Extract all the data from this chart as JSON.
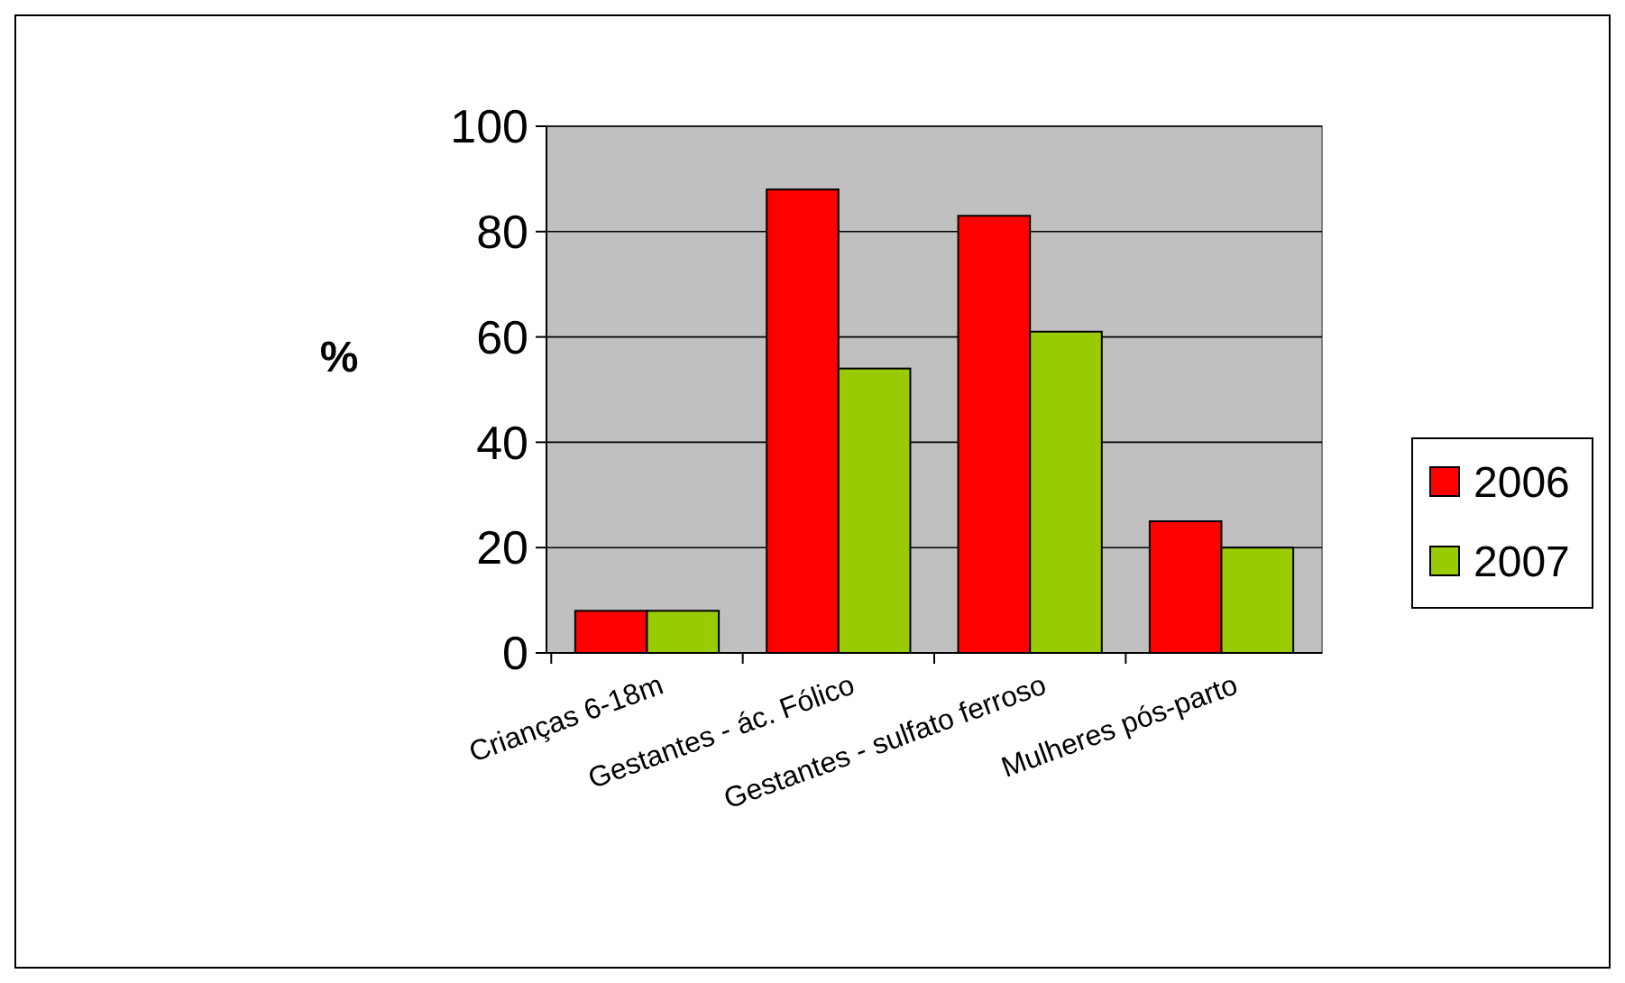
{
  "chart_data": {
    "type": "bar",
    "ylabel": "%",
    "categories": [
      "Crianças 6-18m",
      "Gestantes - ác. Fólico",
      "Gestantes - sulfato ferroso",
      "Mulheres pós-parto"
    ],
    "series": [
      {
        "name": "2006",
        "color": "#ff0000",
        "values": [
          8,
          88,
          83,
          25
        ]
      },
      {
        "name": "2007",
        "color": "#99cc00",
        "values": [
          8,
          54,
          61,
          20
        ]
      }
    ],
    "ylim": [
      0,
      100
    ],
    "yticks": [
      0,
      20,
      40,
      60,
      80,
      100
    ],
    "grid": "y",
    "legend": "right"
  }
}
